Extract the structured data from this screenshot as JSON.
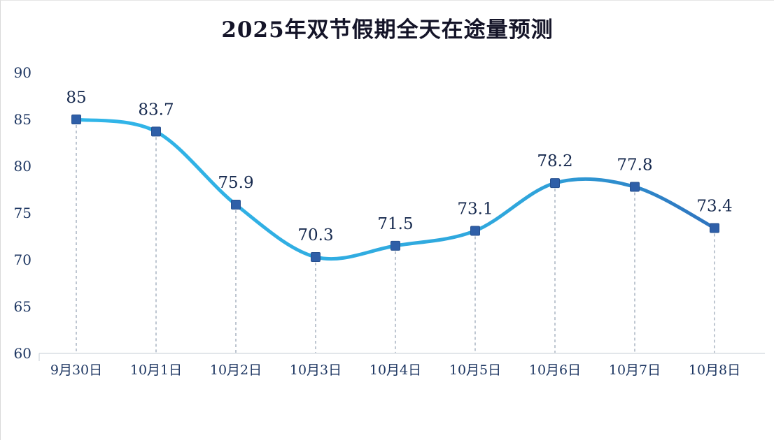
{
  "chart": {
    "title": "2025年双节假期全天在途量预测"
  },
  "chart_data": {
    "type": "line",
    "title": "2025年双节假期全天在途量预测",
    "categories": [
      "9月30日",
      "10月1日",
      "10月2日",
      "10月3日",
      "10月4日",
      "10月5日",
      "10月6日",
      "10月7日",
      "10月8日"
    ],
    "values": [
      85,
      83.7,
      75.9,
      70.3,
      71.5,
      73.1,
      78.2,
      77.8,
      73.4
    ],
    "labels": [
      "85",
      "83.7",
      "75.9",
      "70.3",
      "71.5",
      "73.1",
      "78.2",
      "77.8",
      "73.4"
    ],
    "xlabel": "",
    "ylabel": "",
    "ylim": [
      60,
      90
    ],
    "yticks": [
      60,
      65,
      70,
      75,
      80,
      85,
      90
    ],
    "grid": false,
    "legend": "none",
    "marker": "square",
    "smooth": true,
    "colors": {
      "line_start": "#31b6e9",
      "line_mid": "#2fa6dc",
      "line_end": "#2e73be",
      "marker": "#2f5fa8",
      "marker_stroke": "#27508f",
      "drop_line": "#93a0b2",
      "axis_line": "#c6ccd6",
      "value_label": "#16294e",
      "axis_text": "#1c3561",
      "title_text": "#141428"
    }
  }
}
